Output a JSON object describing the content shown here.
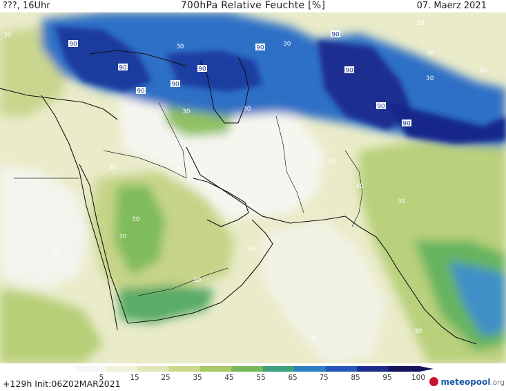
{
  "header": {
    "left": "???, 16Uhr",
    "title": "700hPa Relative Feuchte [%]",
    "date": "07. Maerz 2021"
  },
  "legend": {
    "ticks": [
      "5",
      "15",
      "25",
      "35",
      "45",
      "55",
      "65",
      "75",
      "85",
      "95",
      "100"
    ],
    "colors": [
      "#f7f7f7",
      "#f1f1d8",
      "#e3e6b6",
      "#cdd78c",
      "#a9c866",
      "#76b95a",
      "#3f9f7d",
      "#2d7fc3",
      "#2457b7",
      "#1d2e8c",
      "#14145a"
    ]
  },
  "contour_labels": [
    {
      "text": "90"
    },
    {
      "text": "90"
    },
    {
      "text": "90"
    },
    {
      "text": "90"
    },
    {
      "text": "90"
    },
    {
      "text": "90"
    },
    {
      "text": "90"
    },
    {
      "text": "90"
    },
    {
      "text": "90"
    },
    {
      "text": "90"
    },
    {
      "text": "30"
    },
    {
      "text": "30"
    },
    {
      "text": "30"
    },
    {
      "text": "30"
    },
    {
      "text": "30"
    },
    {
      "text": "30"
    },
    {
      "text": "30"
    },
    {
      "text": "30"
    },
    {
      "text": "30"
    },
    {
      "text": "30"
    },
    {
      "text": "30"
    },
    {
      "text": "30"
    },
    {
      "text": "30"
    },
    {
      "text": "30"
    },
    {
      "text": "30"
    },
    {
      "text": "30"
    },
    {
      "text": "30"
    },
    {
      "text": "30"
    },
    {
      "text": "30"
    },
    {
      "text": "30"
    }
  ],
  "footer": {
    "init": "+129h  Init:06Z02MAR2021",
    "brand_main": "meteopool",
    "brand_suffix": ".org"
  }
}
